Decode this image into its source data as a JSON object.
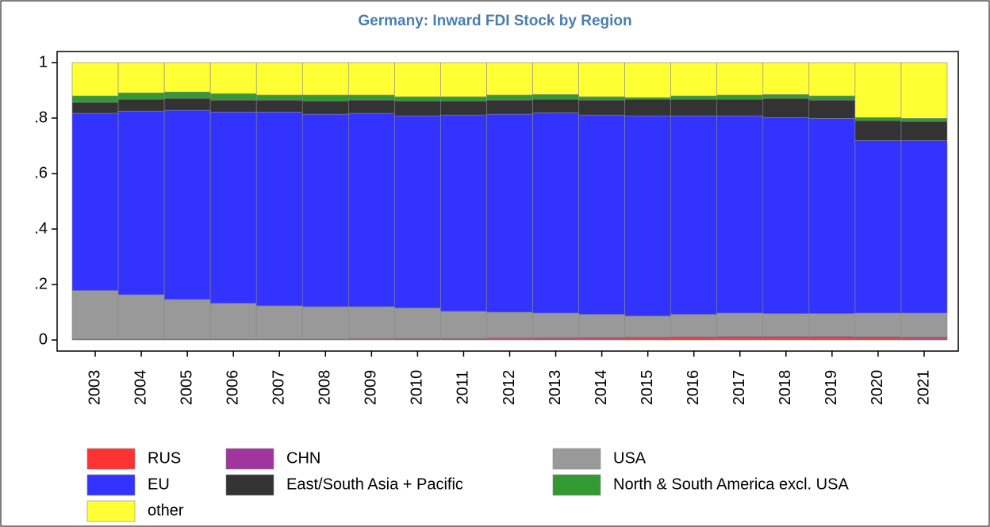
{
  "chart_data": {
    "type": "stacked_bar",
    "title": "Germany: Inward FDI Stock by Region",
    "categories": [
      "2003",
      "2004",
      "2005",
      "2006",
      "2007",
      "2008",
      "2009",
      "2010",
      "2011",
      "2012",
      "2013",
      "2014",
      "2015",
      "2016",
      "2017",
      "2018",
      "2019",
      "2020",
      "2021"
    ],
    "series": [
      {
        "name": "RUS",
        "color": "#ff3333",
        "values": [
          0.001,
          0.001,
          0.001,
          0.001,
          0.001,
          0.001,
          0.003,
          0.004,
          0.004,
          0.005,
          0.005,
          0.006,
          0.007,
          0.008,
          0.008,
          0.008,
          0.008,
          0.007,
          0.006
        ]
      },
      {
        "name": "CHN",
        "color": "#a0359e",
        "values": [
          0.003,
          0.003,
          0.003,
          0.003,
          0.003,
          0.003,
          0.003,
          0.003,
          0.003,
          0.003,
          0.004,
          0.004,
          0.004,
          0.004,
          0.005,
          0.005,
          0.005,
          0.005,
          0.005
        ]
      },
      {
        "name": "USA",
        "color": "#999999",
        "values": [
          0.174,
          0.159,
          0.142,
          0.128,
          0.119,
          0.116,
          0.114,
          0.108,
          0.096,
          0.092,
          0.088,
          0.082,
          0.075,
          0.08,
          0.084,
          0.082,
          0.082,
          0.085,
          0.086
        ]
      },
      {
        "name": "EU",
        "color": "#3333ff",
        "values": [
          0.639,
          0.662,
          0.682,
          0.69,
          0.699,
          0.694,
          0.697,
          0.693,
          0.708,
          0.714,
          0.722,
          0.719,
          0.722,
          0.716,
          0.711,
          0.707,
          0.704,
          0.622,
          0.622
        ]
      },
      {
        "name": "East/South Asia + Pacific",
        "color": "#333333",
        "values": [
          0.04,
          0.043,
          0.043,
          0.043,
          0.043,
          0.048,
          0.048,
          0.054,
          0.051,
          0.051,
          0.049,
          0.054,
          0.06,
          0.06,
          0.06,
          0.069,
          0.066,
          0.072,
          0.069
        ]
      },
      {
        "name": "North & South America excl. USA",
        "color": "#339933",
        "values": [
          0.023,
          0.023,
          0.023,
          0.023,
          0.018,
          0.021,
          0.018,
          0.015,
          0.015,
          0.018,
          0.017,
          0.012,
          0.006,
          0.012,
          0.015,
          0.014,
          0.015,
          0.011,
          0.011
        ]
      },
      {
        "name": "other",
        "color": "#ffff33",
        "values": [
          0.12,
          0.109,
          0.106,
          0.112,
          0.117,
          0.117,
          0.117,
          0.123,
          0.123,
          0.117,
          0.115,
          0.123,
          0.126,
          0.12,
          0.117,
          0.115,
          0.12,
          0.198,
          0.201
        ]
      }
    ],
    "ylim": [
      -0.04,
      1.04
    ],
    "yticks": [
      0,
      {
        "value": 0.2,
        "label": ".2"
      },
      {
        "value": 0.4,
        "label": ".4"
      },
      {
        "value": 0.6,
        "label": ".6"
      },
      {
        "value": 0.8,
        "label": ".8"
      },
      1
    ]
  }
}
